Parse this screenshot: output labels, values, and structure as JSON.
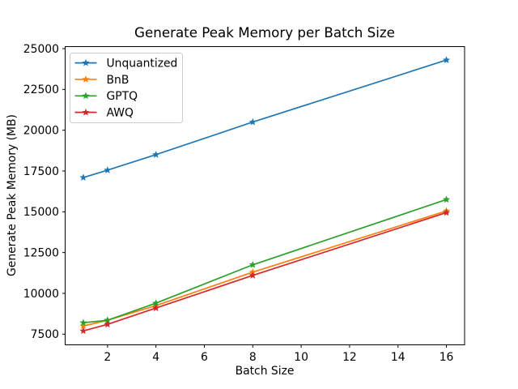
{
  "window": {
    "background": "#ffffff"
  },
  "chart_data": {
    "type": "line",
    "title": "Generate Peak Memory per Batch Size",
    "xlabel": "Batch Size",
    "ylabel": "Generate Peak Memory (MB)",
    "x": [
      1,
      2,
      4,
      8,
      16
    ],
    "series": [
      {
        "name": "Unquantized",
        "color": "#1f77b4",
        "marker": "star",
        "values": [
          17100,
          17550,
          18500,
          20500,
          24300
        ]
      },
      {
        "name": "BnB",
        "color": "#ff7f0e",
        "marker": "star",
        "values": [
          8000,
          8350,
          9250,
          11300,
          15050
        ]
      },
      {
        "name": "GPTQ",
        "color": "#2ca02c",
        "marker": "star",
        "values": [
          8200,
          8350,
          9400,
          11750,
          15750
        ]
      },
      {
        "name": "AWQ",
        "color": "#d62728",
        "marker": "star",
        "values": [
          7700,
          8100,
          9100,
          11100,
          14950
        ]
      }
    ],
    "xticks": [
      2,
      4,
      6,
      8,
      10,
      12,
      14,
      16
    ],
    "yticks": [
      7500,
      10000,
      12500,
      15000,
      17500,
      20000,
      22500,
      25000
    ],
    "xlim": [
      0.25,
      16.75
    ],
    "ylim": [
      6845,
      25125
    ],
    "grid": false,
    "legend": {
      "position": "upper-left"
    },
    "axis_color": "#000000",
    "text_color": "#000000",
    "legend_border_color": "#cccccc"
  }
}
